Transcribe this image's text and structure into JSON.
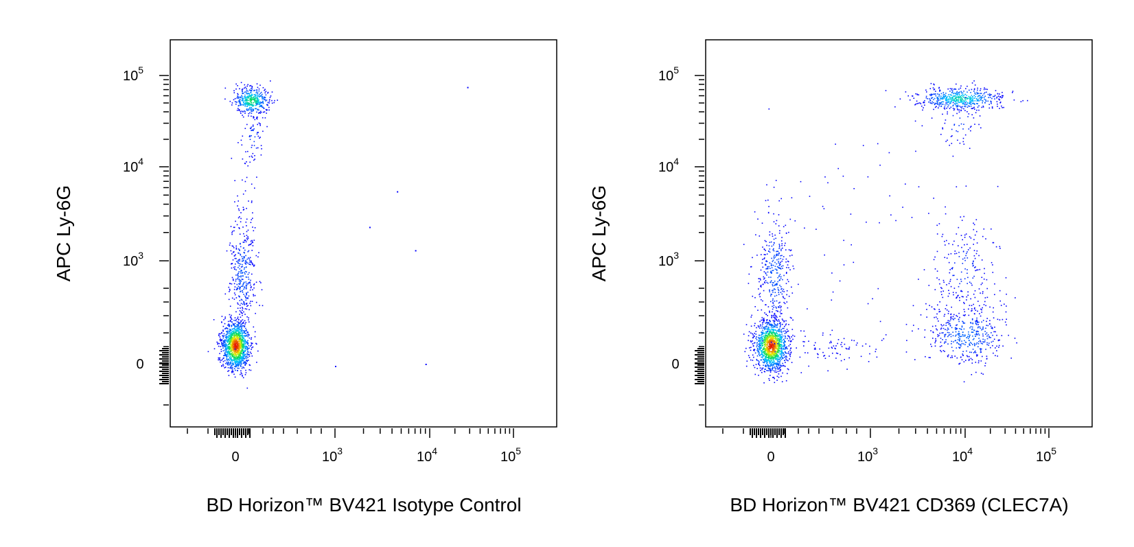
{
  "chart_data": [
    {
      "type": "scatter",
      "subtype": "flow-cytometry-dot-plot",
      "title": "",
      "xlabel": "BD Horizon™ BV421 Isotype Control",
      "ylabel": "APC Ly-6G",
      "x_scale": "biexponential",
      "y_scale": "biexponential",
      "xlim": [
        -200,
        200000
      ],
      "ylim": [
        -200,
        200000
      ],
      "x_ticks": [
        {
          "base": "0",
          "exp": ""
        },
        {
          "base": "10",
          "exp": "3"
        },
        {
          "base": "10",
          "exp": "4"
        },
        {
          "base": "10",
          "exp": "5"
        }
      ],
      "y_ticks": [
        {
          "base": "0",
          "exp": ""
        },
        {
          "base": "10",
          "exp": "3"
        },
        {
          "base": "10",
          "exp": "4"
        },
        {
          "base": "10",
          "exp": "5"
        }
      ],
      "grid": false,
      "legend": "none",
      "colormap": "density (blue-cyan-green-yellow-red)",
      "populations": [
        {
          "x_center": 0,
          "y_center": 0,
          "density": "very high",
          "note": "double-negative cluster"
        },
        {
          "x_center": 20,
          "y_center": 50000,
          "density": "high",
          "note": "Ly-6G+ cluster"
        },
        {
          "x_center": 10,
          "y_center": 1000,
          "density": "low",
          "note": "streak between clusters"
        }
      ],
      "isolated_points": [
        {
          "x": 1000,
          "y": -20
        },
        {
          "x": 2300,
          "y": 2300
        },
        {
          "x": 4500,
          "y": 5500
        },
        {
          "x": 7000,
          "y": 1300
        },
        {
          "x": 9000,
          "y": 0
        },
        {
          "x": 28000,
          "y": 75000
        }
      ]
    },
    {
      "type": "scatter",
      "subtype": "flow-cytometry-dot-plot",
      "title": "",
      "xlabel": "BD Horizon™ BV421 CD369 (CLEC7A)",
      "ylabel": "APC Ly-6G",
      "x_scale": "biexponential",
      "y_scale": "biexponential",
      "xlim": [
        -200,
        200000
      ],
      "ylim": [
        -200,
        200000
      ],
      "x_ticks": [
        {
          "base": "0",
          "exp": ""
        },
        {
          "base": "10",
          "exp": "3"
        },
        {
          "base": "10",
          "exp": "4"
        },
        {
          "base": "10",
          "exp": "5"
        }
      ],
      "y_ticks": [
        {
          "base": "0",
          "exp": ""
        },
        {
          "base": "10",
          "exp": "3"
        },
        {
          "base": "10",
          "exp": "4"
        },
        {
          "base": "10",
          "exp": "5"
        }
      ],
      "grid": false,
      "legend": "none",
      "colormap": "density (blue-cyan-green-yellow-red)",
      "populations": [
        {
          "x_center": 0,
          "y_center": 0,
          "density": "very high",
          "note": "double-negative cluster"
        },
        {
          "x_center": 6500,
          "y_center": 55000,
          "density": "high",
          "note": "CD369+ Ly-6G+ cluster"
        },
        {
          "x_center": 8000,
          "y_center": 20,
          "density": "medium",
          "note": "CD369+ Ly-6G- cluster"
        },
        {
          "x_center": 10,
          "y_center": 1000,
          "density": "low",
          "note": "streak"
        }
      ]
    }
  ]
}
